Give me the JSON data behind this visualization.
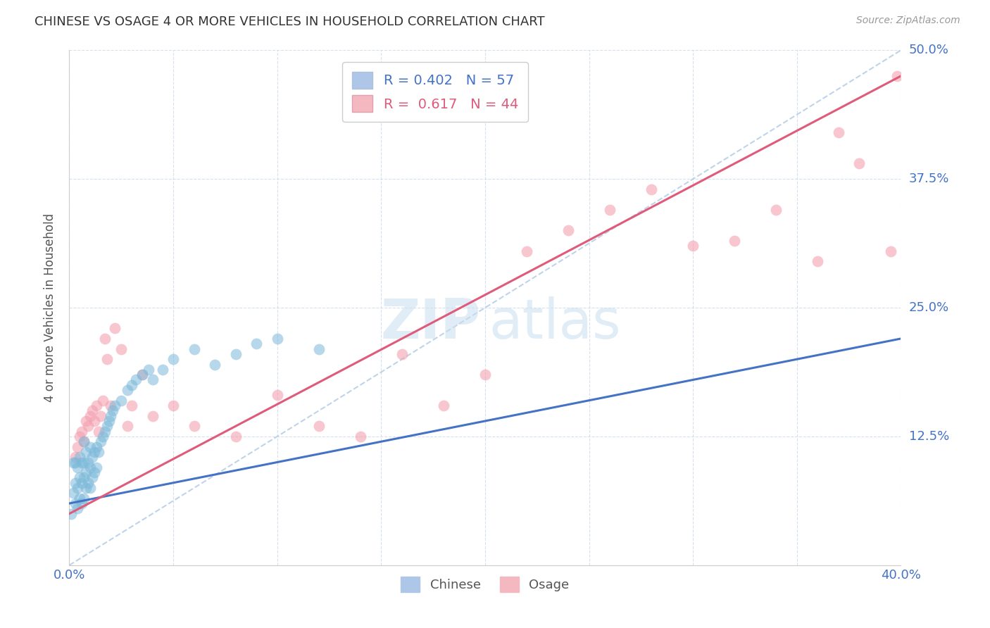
{
  "title": "CHINESE VS OSAGE 4 OR MORE VEHICLES IN HOUSEHOLD CORRELATION CHART",
  "source": "Source: ZipAtlas.com",
  "ylabel": "4 or more Vehicles in Household",
  "xlim": [
    0.0,
    0.4
  ],
  "ylim": [
    0.0,
    0.5
  ],
  "xticks": [
    0.0,
    0.05,
    0.1,
    0.15,
    0.2,
    0.25,
    0.3,
    0.35,
    0.4
  ],
  "yticks": [
    0.0,
    0.125,
    0.25,
    0.375,
    0.5
  ],
  "ytick_labels": [
    "",
    "12.5%",
    "25.0%",
    "37.5%",
    "50.0%"
  ],
  "chinese_color": "#7ab8d9",
  "osage_color": "#f4a0b0",
  "chinese_line_color": "#4472c4",
  "osage_line_color": "#e05a7a",
  "dashed_line_color": "#b8cfe8",
  "chinese_scatter_x": [
    0.001,
    0.002,
    0.002,
    0.003,
    0.003,
    0.003,
    0.004,
    0.004,
    0.004,
    0.005,
    0.005,
    0.005,
    0.006,
    0.006,
    0.006,
    0.007,
    0.007,
    0.007,
    0.007,
    0.008,
    0.008,
    0.008,
    0.009,
    0.009,
    0.01,
    0.01,
    0.01,
    0.011,
    0.011,
    0.012,
    0.012,
    0.013,
    0.013,
    0.014,
    0.015,
    0.016,
    0.017,
    0.018,
    0.019,
    0.02,
    0.021,
    0.022,
    0.025,
    0.028,
    0.03,
    0.032,
    0.035,
    0.038,
    0.04,
    0.045,
    0.05,
    0.06,
    0.07,
    0.08,
    0.09,
    0.1,
    0.12
  ],
  "chinese_scatter_y": [
    0.05,
    0.07,
    0.1,
    0.06,
    0.08,
    0.1,
    0.055,
    0.075,
    0.095,
    0.065,
    0.085,
    0.105,
    0.06,
    0.08,
    0.1,
    0.065,
    0.085,
    0.1,
    0.12,
    0.075,
    0.09,
    0.11,
    0.08,
    0.1,
    0.075,
    0.095,
    0.115,
    0.085,
    0.105,
    0.09,
    0.11,
    0.095,
    0.115,
    0.11,
    0.12,
    0.125,
    0.13,
    0.135,
    0.14,
    0.145,
    0.15,
    0.155,
    0.16,
    0.17,
    0.175,
    0.18,
    0.185,
    0.19,
    0.18,
    0.19,
    0.2,
    0.21,
    0.195,
    0.205,
    0.215,
    0.22,
    0.21
  ],
  "osage_scatter_x": [
    0.003,
    0.004,
    0.005,
    0.006,
    0.007,
    0.008,
    0.009,
    0.01,
    0.011,
    0.012,
    0.013,
    0.014,
    0.015,
    0.016,
    0.017,
    0.018,
    0.02,
    0.022,
    0.025,
    0.028,
    0.03,
    0.035,
    0.04,
    0.05,
    0.06,
    0.08,
    0.1,
    0.12,
    0.14,
    0.16,
    0.18,
    0.2,
    0.22,
    0.24,
    0.26,
    0.28,
    0.3,
    0.32,
    0.34,
    0.36,
    0.37,
    0.38,
    0.395,
    0.398
  ],
  "osage_scatter_y": [
    0.105,
    0.115,
    0.125,
    0.13,
    0.12,
    0.14,
    0.135,
    0.145,
    0.15,
    0.14,
    0.155,
    0.13,
    0.145,
    0.16,
    0.22,
    0.2,
    0.155,
    0.23,
    0.21,
    0.135,
    0.155,
    0.185,
    0.145,
    0.155,
    0.135,
    0.125,
    0.165,
    0.135,
    0.125,
    0.205,
    0.155,
    0.185,
    0.305,
    0.325,
    0.345,
    0.365,
    0.31,
    0.315,
    0.345,
    0.295,
    0.42,
    0.39,
    0.305,
    0.475
  ],
  "chinese_trendline": [
    0.0,
    0.4,
    0.06,
    0.22
  ],
  "osage_trendline": [
    0.0,
    0.4,
    0.05,
    0.475
  ],
  "dashed_line": [
    0.0,
    0.4,
    0.0,
    0.5
  ],
  "watermark_zip_color": "#c8dff0",
  "watermark_atlas_color": "#c8dff0"
}
